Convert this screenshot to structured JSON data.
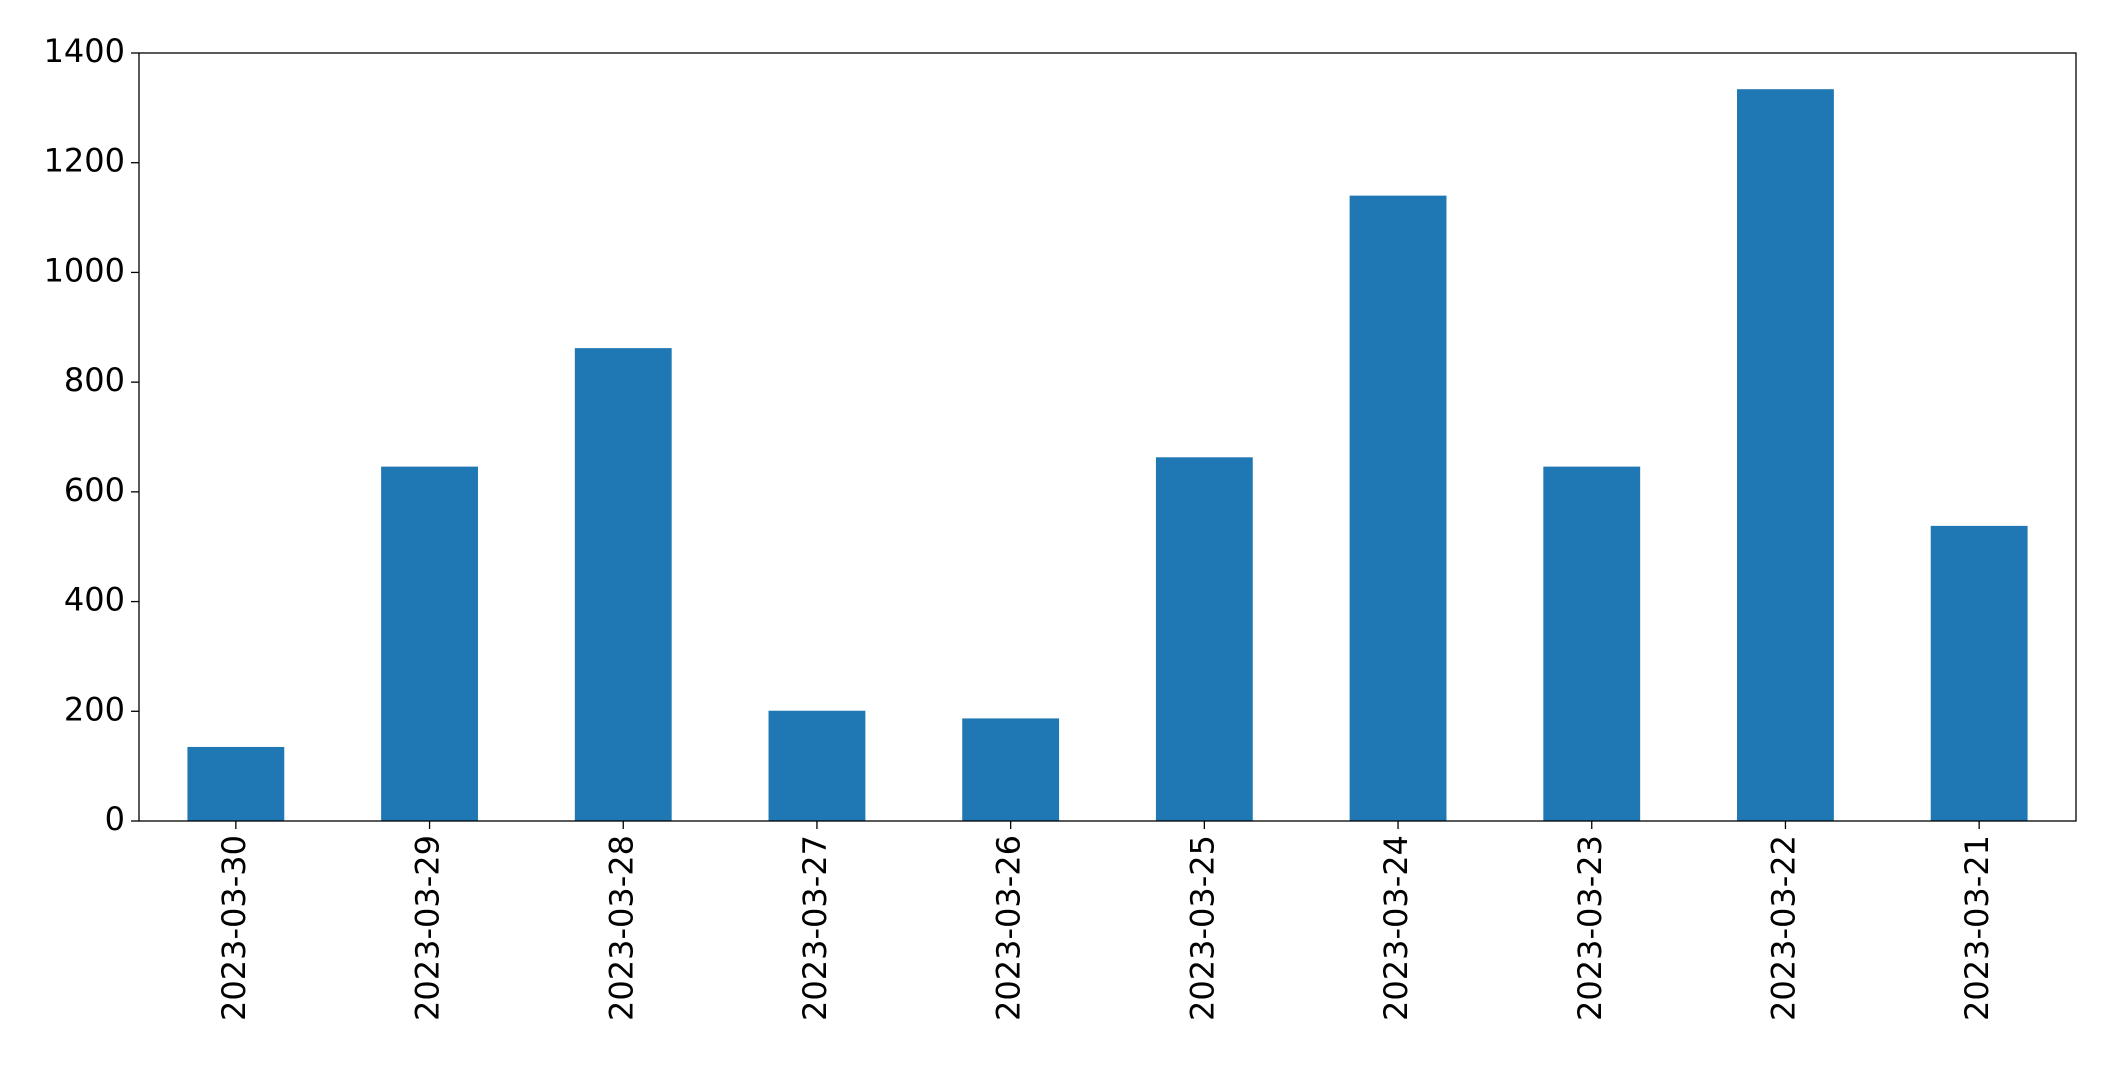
{
  "chart_data": {
    "type": "bar",
    "categories": [
      "2023-03-30",
      "2023-03-29",
      "2023-03-28",
      "2023-03-27",
      "2023-03-26",
      "2023-03-25",
      "2023-03-24",
      "2023-03-23",
      "2023-03-22",
      "2023-03-21"
    ],
    "values": [
      135,
      646,
      862,
      201,
      187,
      663,
      1140,
      646,
      1334,
      538
    ],
    "color": "#1f77b4",
    "ylim": [
      0,
      1400
    ],
    "yticks": [
      0,
      200,
      400,
      600,
      800,
      1000,
      1200,
      1400
    ],
    "grid": false
  }
}
